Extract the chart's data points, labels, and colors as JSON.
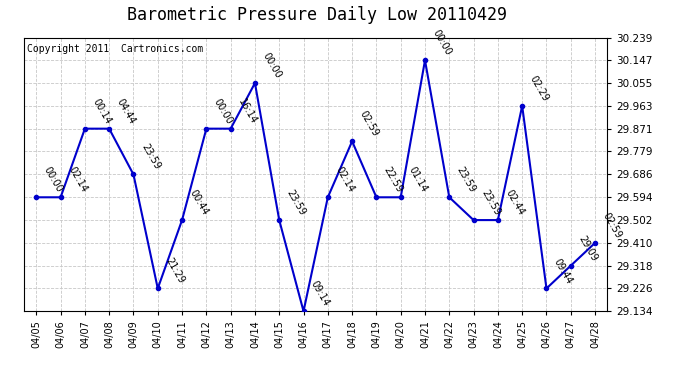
{
  "title": "Barometric Pressure Daily Low 20110429",
  "copyright": "Copyright 2011  Cartronics.com",
  "dates": [
    "04/05",
    "04/06",
    "04/07",
    "04/08",
    "04/09",
    "04/10",
    "04/11",
    "04/12",
    "04/13",
    "04/14",
    "04/15",
    "04/16",
    "04/17",
    "04/18",
    "04/19",
    "04/20",
    "04/21",
    "04/22",
    "04/23",
    "04/24",
    "04/25",
    "04/26",
    "04/27",
    "04/28"
  ],
  "values": [
    29.594,
    29.594,
    29.871,
    29.871,
    29.686,
    29.226,
    29.502,
    29.871,
    29.871,
    30.055,
    29.502,
    29.134,
    29.594,
    29.82,
    29.594,
    29.594,
    30.147,
    29.594,
    29.502,
    29.502,
    29.963,
    29.226,
    29.318,
    29.41
  ],
  "annotations": [
    "00:00",
    "02:14",
    "00:14",
    "04:44",
    "23:59",
    "21:29",
    "00:44",
    "00:00",
    "16:14",
    "00:00",
    "23:59",
    "09:14",
    "02:14",
    "02:59",
    "22:59",
    "01:14",
    "00:00",
    "23:59",
    "23:59",
    "02:44",
    "02:29",
    "09:44",
    "29:09",
    "02:59"
  ],
  "line_color": "#0000cc",
  "marker_color": "#0000cc",
  "background_color": "#ffffff",
  "grid_color": "#c8c8c8",
  "ylim_min": 29.134,
  "ylim_max": 30.239,
  "yticks": [
    29.134,
    29.226,
    29.318,
    29.41,
    29.502,
    29.594,
    29.686,
    29.779,
    29.871,
    29.963,
    30.055,
    30.147,
    30.239
  ],
  "title_fontsize": 12,
  "annotation_fontsize": 7,
  "copyright_fontsize": 7,
  "xtick_fontsize": 7,
  "ytick_fontsize": 7.5
}
